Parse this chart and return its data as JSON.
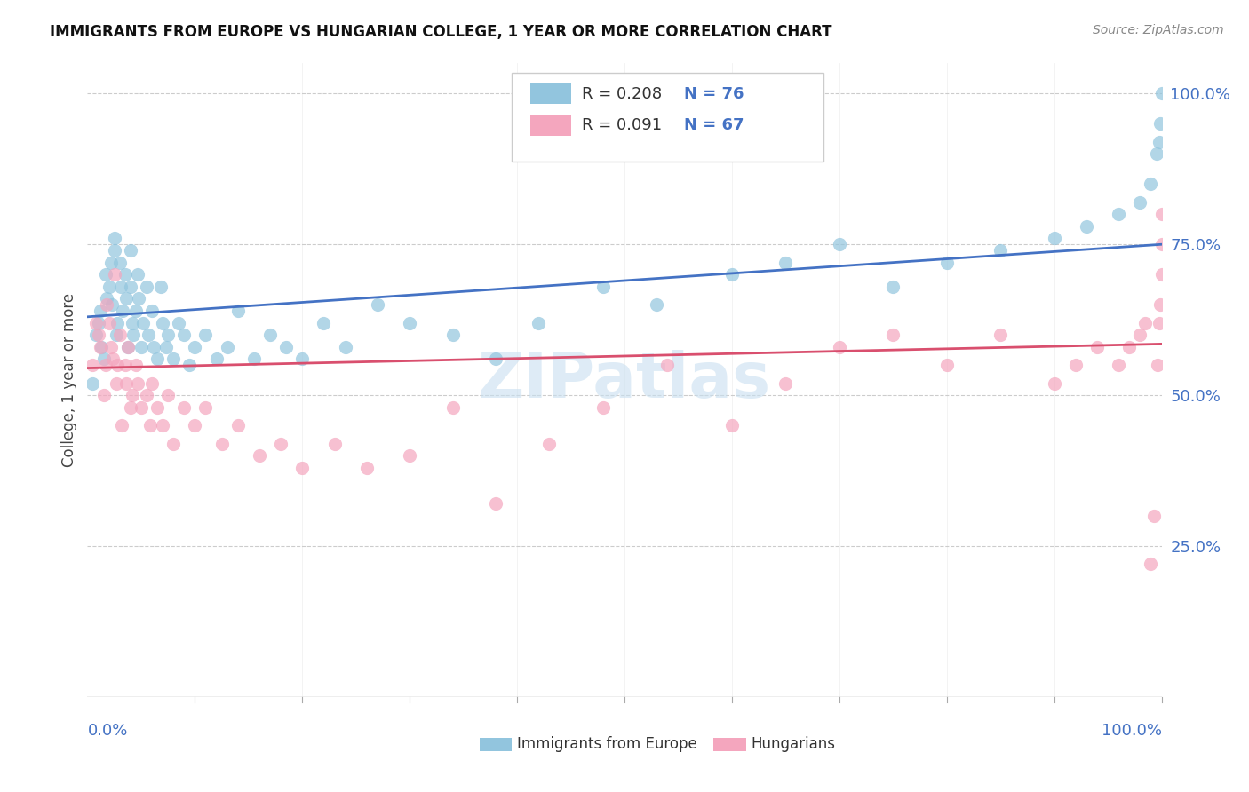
{
  "title": "IMMIGRANTS FROM EUROPE VS HUNGARIAN COLLEGE, 1 YEAR OR MORE CORRELATION CHART",
  "source": "Source: ZipAtlas.com",
  "ylabel": "College, 1 year or more",
  "ytick_labels": [
    "25.0%",
    "50.0%",
    "75.0%",
    "100.0%"
  ],
  "ytick_values": [
    0.25,
    0.5,
    0.75,
    1.0
  ],
  "legend_bottom": [
    "Immigrants from Europe",
    "Hungarians"
  ],
  "blue_color": "#92c5de",
  "pink_color": "#f4a6be",
  "blue_line_color": "#4472c4",
  "pink_line_color": "#d94f6e",
  "watermark_text": "ZIPatlas",
  "watermark_color": "#c8dff0",
  "blue_R": 0.208,
  "blue_N": 76,
  "pink_R": 0.091,
  "pink_N": 67,
  "blue_x": [
    0.005,
    0.008,
    0.01,
    0.012,
    0.013,
    0.015,
    0.017,
    0.018,
    0.02,
    0.022,
    0.023,
    0.025,
    0.025,
    0.027,
    0.028,
    0.03,
    0.031,
    0.033,
    0.035,
    0.036,
    0.038,
    0.04,
    0.04,
    0.042,
    0.043,
    0.045,
    0.047,
    0.048,
    0.05,
    0.052,
    0.055,
    0.057,
    0.06,
    0.062,
    0.065,
    0.068,
    0.07,
    0.073,
    0.075,
    0.08,
    0.085,
    0.09,
    0.095,
    0.1,
    0.11,
    0.12,
    0.13,
    0.14,
    0.155,
    0.17,
    0.185,
    0.2,
    0.22,
    0.24,
    0.27,
    0.3,
    0.34,
    0.38,
    0.42,
    0.48,
    0.53,
    0.6,
    0.65,
    0.7,
    0.75,
    0.8,
    0.85,
    0.9,
    0.93,
    0.96,
    0.98,
    0.99,
    0.995,
    0.998,
    0.999,
    1.0
  ],
  "blue_y": [
    0.52,
    0.6,
    0.62,
    0.64,
    0.58,
    0.56,
    0.7,
    0.66,
    0.68,
    0.72,
    0.65,
    0.74,
    0.76,
    0.6,
    0.62,
    0.72,
    0.68,
    0.64,
    0.7,
    0.66,
    0.58,
    0.74,
    0.68,
    0.62,
    0.6,
    0.64,
    0.7,
    0.66,
    0.58,
    0.62,
    0.68,
    0.6,
    0.64,
    0.58,
    0.56,
    0.68,
    0.62,
    0.58,
    0.6,
    0.56,
    0.62,
    0.6,
    0.55,
    0.58,
    0.6,
    0.56,
    0.58,
    0.64,
    0.56,
    0.6,
    0.58,
    0.56,
    0.62,
    0.58,
    0.65,
    0.62,
    0.6,
    0.56,
    0.62,
    0.68,
    0.65,
    0.7,
    0.72,
    0.75,
    0.68,
    0.72,
    0.74,
    0.76,
    0.78,
    0.8,
    0.82,
    0.85,
    0.9,
    0.92,
    0.95,
    1.0
  ],
  "pink_x": [
    0.005,
    0.008,
    0.01,
    0.012,
    0.015,
    0.017,
    0.018,
    0.02,
    0.022,
    0.024,
    0.025,
    0.027,
    0.028,
    0.03,
    0.032,
    0.035,
    0.036,
    0.038,
    0.04,
    0.042,
    0.045,
    0.047,
    0.05,
    0.055,
    0.058,
    0.06,
    0.065,
    0.07,
    0.075,
    0.08,
    0.09,
    0.1,
    0.11,
    0.125,
    0.14,
    0.16,
    0.18,
    0.2,
    0.23,
    0.26,
    0.3,
    0.34,
    0.38,
    0.43,
    0.48,
    0.54,
    0.6,
    0.65,
    0.7,
    0.75,
    0.8,
    0.85,
    0.9,
    0.92,
    0.94,
    0.96,
    0.97,
    0.98,
    0.985,
    0.99,
    0.993,
    0.996,
    0.998,
    0.999,
    1.0,
    1.0,
    1.0
  ],
  "pink_y": [
    0.55,
    0.62,
    0.6,
    0.58,
    0.5,
    0.55,
    0.65,
    0.62,
    0.58,
    0.56,
    0.7,
    0.52,
    0.55,
    0.6,
    0.45,
    0.55,
    0.52,
    0.58,
    0.48,
    0.5,
    0.55,
    0.52,
    0.48,
    0.5,
    0.45,
    0.52,
    0.48,
    0.45,
    0.5,
    0.42,
    0.48,
    0.45,
    0.48,
    0.42,
    0.45,
    0.4,
    0.42,
    0.38,
    0.42,
    0.38,
    0.4,
    0.48,
    0.32,
    0.42,
    0.48,
    0.55,
    0.45,
    0.52,
    0.58,
    0.6,
    0.55,
    0.6,
    0.52,
    0.55,
    0.58,
    0.55,
    0.58,
    0.6,
    0.62,
    0.22,
    0.3,
    0.55,
    0.62,
    0.65,
    0.7,
    0.75,
    0.8
  ]
}
